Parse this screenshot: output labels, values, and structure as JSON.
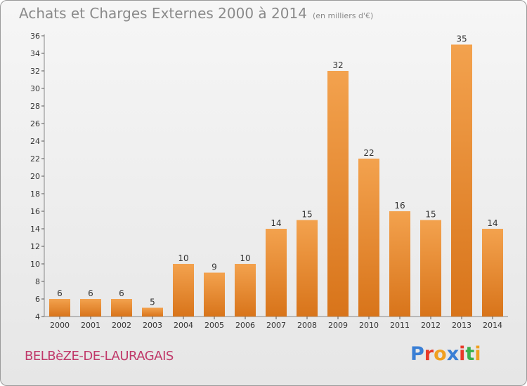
{
  "header": {
    "title": "Achats et Charges Externes 2000 à 2014",
    "unit": "(en milliers d'€)"
  },
  "footer": {
    "commune": "BELBèZE-DE-LAURAGAIS",
    "logo_text": "Proxiti",
    "logo_colors": [
      "#3a7fd5",
      "#e83a2a",
      "#f0a020",
      "#3a7fd5",
      "#e83a2a",
      "#3ab04a",
      "#f0a020"
    ]
  },
  "colors": {
    "bar_top": "#f3a24e",
    "bar_bottom": "#d8741a",
    "axis": "#888888",
    "grid_tick": "#555555"
  },
  "chart_data": {
    "type": "bar",
    "categories": [
      "2000",
      "2001",
      "2002",
      "2003",
      "2004",
      "2005",
      "2006",
      "2007",
      "2008",
      "2009",
      "2010",
      "2011",
      "2012",
      "2013",
      "2014"
    ],
    "values": [
      6,
      6,
      6,
      5,
      10,
      9,
      10,
      14,
      15,
      32,
      22,
      16,
      15,
      35,
      14
    ],
    "title": "Achats et Charges Externes 2000 à 2014",
    "xlabel": "",
    "ylabel": "",
    "ylim": [
      4,
      36
    ],
    "yticks": [
      4,
      6,
      8,
      10,
      12,
      14,
      16,
      18,
      20,
      22,
      24,
      26,
      28,
      30,
      32,
      34,
      36
    ],
    "grid": false,
    "data_labels": true
  }
}
